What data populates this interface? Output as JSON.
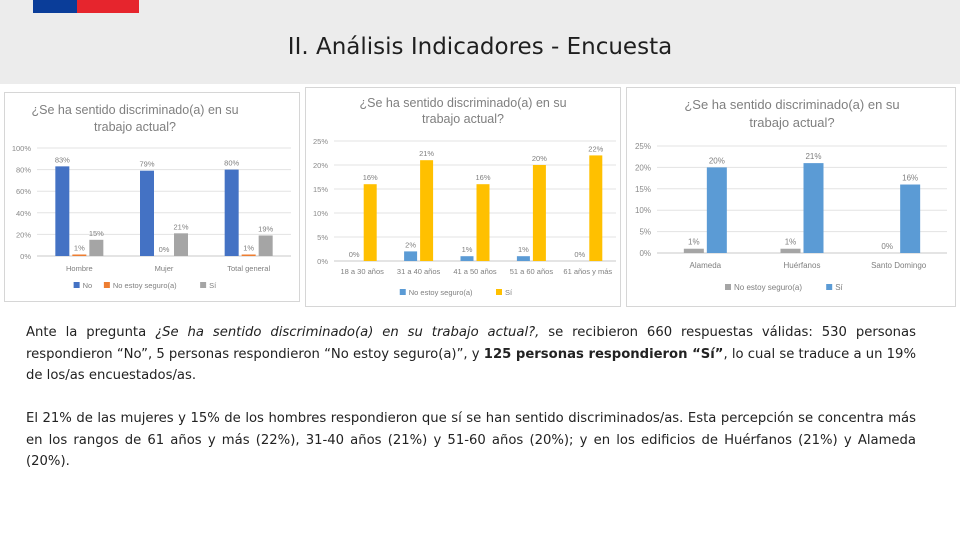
{
  "header": {
    "title": "II. Análisis Indicadores - Encuesta",
    "flag_colors": [
      "#0a3d99",
      "#e6252d"
    ]
  },
  "chart_data": [
    {
      "type": "bar",
      "title": "¿Se ha sentido discriminado(a) en su trabajo actual?",
      "categories": [
        "Hombre",
        "Mujer",
        "Total general"
      ],
      "series": [
        {
          "name": "No",
          "color": "#4472c4",
          "values": [
            83,
            79,
            80
          ],
          "labels": [
            "83%",
            "79%",
            "80%"
          ]
        },
        {
          "name": "No estoy seguro(a)",
          "color": "#ed7d31",
          "values": [
            1,
            0,
            1
          ],
          "labels": [
            "1%",
            "0%",
            "1%"
          ]
        },
        {
          "name": "Sí",
          "color": "#a5a5a5",
          "values": [
            15,
            21,
            19
          ],
          "labels": [
            "15%",
            "21%",
            "19%"
          ]
        }
      ],
      "yticks": [
        "0%",
        "20%",
        "40%",
        "60%",
        "80%",
        "100%"
      ],
      "ylim": [
        0,
        100
      ],
      "legend": "bottom",
      "grid": true
    },
    {
      "type": "bar",
      "title": "¿Se ha sentido discriminado(a) en su trabajo actual?",
      "categories": [
        "18 a 30 años",
        "31 a 40 años",
        "41 a 50 años",
        "51 a 60 años",
        "61 años y más"
      ],
      "series": [
        {
          "name": "No estoy seguro(a)",
          "color": "#5b9bd5",
          "values": [
            0,
            2,
            1,
            1,
            0
          ],
          "labels": [
            "0%",
            "2%",
            "1%",
            "1%",
            "0%"
          ]
        },
        {
          "name": "Sí",
          "color": "#ffc000",
          "values": [
            16,
            21,
            16,
            20,
            22
          ],
          "labels": [
            "16%",
            "21%",
            "16%",
            "20%",
            "22%"
          ]
        }
      ],
      "yticks": [
        "0%",
        "5%",
        "10%",
        "15%",
        "20%",
        "25%"
      ],
      "ylim": [
        0,
        25
      ],
      "legend": "bottom",
      "grid": true
    },
    {
      "type": "bar",
      "title": "¿Se ha sentido discriminado(a) en su trabajo actual?",
      "categories": [
        "Alameda",
        "Huérfanos",
        "Santo Domingo"
      ],
      "series": [
        {
          "name": "No estoy seguro(a)",
          "color": "#a5a5a5",
          "values": [
            1,
            1,
            0
          ],
          "labels": [
            "1%",
            "1%",
            "0%"
          ]
        },
        {
          "name": "Sí",
          "color": "#5b9bd5",
          "values": [
            20,
            21,
            16
          ],
          "labels": [
            "20%",
            "21%",
            "16%"
          ]
        }
      ],
      "yticks": [
        "0%",
        "5%",
        "10%",
        "15%",
        "20%",
        "25%"
      ],
      "ylim": [
        0,
        25
      ],
      "legend": "bottom",
      "grid": true
    }
  ],
  "body": {
    "p1_a": "Ante la pregunta ",
    "p1_question": "¿Se ha sentido discriminado(a) en su trabajo actual?,",
    "p1_b": " se recibieron 660 respuestas válidas: 530 personas respondieron “No”, 5 personas respondieron “No estoy seguro(a)”, y ",
    "p1_bold": "125 personas respondieron “Sí”",
    "p1_c": ", lo cual se traduce a un 19% de los/as encuestados/as.",
    "p2": "El 21% de las mujeres y 15% de los hombres respondieron que sí se han sentido discriminados/as. Esta percepción se concentra más en los rangos de 61 años y más (22%), 31-40 años (21%) y 51-60 años (20%); y en los edificios de Huérfanos (21%) y Alameda (20%)."
  }
}
